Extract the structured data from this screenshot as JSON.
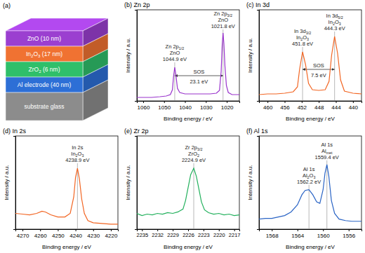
{
  "diagram": {
    "label": "(a)",
    "layers": [
      {
        "label": "ZnO (10 nm)",
        "color": "#9b3fd0"
      },
      {
        "label": [
          {
            "t": "In"
          },
          {
            "t": "2",
            "sub": true
          },
          {
            "t": "O"
          },
          {
            "t": "3",
            "sub": true
          },
          {
            "t": " (17 nm)"
          }
        ],
        "color": "#f07232"
      },
      {
        "label": [
          {
            "t": "ZrO"
          },
          {
            "t": "2",
            "sub": true
          },
          {
            "t": " (6 nm)"
          }
        ],
        "color": "#2fbf6a"
      },
      {
        "label": "Al electrode (40 nm)",
        "color": "#2d6fd6"
      },
      {
        "label": "substrate glass",
        "color": "#8c8c8c"
      }
    ]
  },
  "chart_data": [
    {
      "type": "line",
      "title": "(b) Zn 2p",
      "x_label": "Binding energy / eV",
      "y_label": "Intensity / a.u.",
      "xlim": [
        1063,
        1014
      ],
      "xticks": [
        1060,
        1050,
        1040,
        1030,
        1020
      ],
      "ylim": [
        0,
        130
      ],
      "tick_labels": "x",
      "color": "#9933cc",
      "x": [
        1063,
        1060,
        1056,
        1052,
        1049,
        1047,
        1046,
        1045.5,
        1044.9,
        1044.3,
        1043.6,
        1042.5,
        1040,
        1036,
        1032,
        1028,
        1025,
        1023.5,
        1022.7,
        1022.2,
        1021.8,
        1021.4,
        1020.9,
        1020.2,
        1019.3,
        1017.5,
        1014
      ],
      "values": [
        5,
        5,
        5,
        6,
        7,
        9,
        16,
        34,
        48,
        36,
        18,
        12,
        10,
        10,
        10,
        10,
        11,
        15,
        42,
        80,
        97,
        82,
        50,
        22,
        12,
        9,
        9
      ],
      "annotations": [
        {
          "x": 1044.9,
          "y": 55,
          "lines": [
            [
              {
                "t": "Zn 2p"
              },
              {
                "t": "1/2",
                "sub": true
              }
            ],
            "ZnO",
            "1044.9 eV"
          ]
        },
        {
          "x": 1021.8,
          "y": 102,
          "lines": [
            [
              {
                "t": "Zn 2p"
              },
              {
                "t": "3/2",
                "sub": true
              }
            ],
            "ZnO",
            "1021.8 eV"
          ]
        }
      ],
      "arrows": [
        {
          "x1": 1044.9,
          "x2": 1021.8,
          "y": 36,
          "lines": [
            "SOS",
            "23.1 eV"
          ]
        }
      ]
    },
    {
      "type": "line",
      "title": "(c) In 3d",
      "x_label": "Binding energy / eV",
      "y_label": "Intensity / a.u.",
      "xlim": [
        462,
        438
      ],
      "xticks": [
        460,
        456,
        452,
        448,
        444,
        440
      ],
      "ylim": [
        0,
        130
      ],
      "tick_labels": "x",
      "color": "#f26522",
      "x": [
        462,
        460,
        458,
        456,
        454,
        453,
        452.5,
        451.8,
        451.1,
        450.4,
        449.5,
        448,
        446.5,
        445.6,
        445,
        444.3,
        443.6,
        442.9,
        442,
        440,
        438
      ],
      "values": [
        9,
        10,
        10,
        11,
        13,
        20,
        45,
        70,
        52,
        25,
        16,
        15,
        16,
        28,
        65,
        92,
        68,
        30,
        14,
        11,
        10
      ],
      "annotations": [
        {
          "x": 451.8,
          "y": 77,
          "lines": [
            [
              {
                "t": "In 3d"
              },
              {
                "t": "3/2",
                "sub": true
              }
            ],
            [
              {
                "t": "In"
              },
              {
                "t": "2",
                "sub": true
              },
              {
                "t": "O"
              },
              {
                "t": "3",
                "sub": true
              }
            ],
            "451.8 eV"
          ]
        },
        {
          "x": 444.3,
          "y": 99,
          "lines": [
            [
              {
                "t": "In 3d"
              },
              {
                "t": "5/2",
                "sub": true
              }
            ],
            [
              {
                "t": "In"
              },
              {
                "t": "2",
                "sub": true
              },
              {
                "t": "O"
              },
              {
                "t": "3",
                "sub": true
              }
            ],
            "444.3 eV"
          ]
        }
      ],
      "arrows": [
        {
          "x1": 451.8,
          "x2": 444.3,
          "y": 45,
          "lines": [
            "SOS",
            "7.5 eV"
          ]
        }
      ]
    },
    {
      "type": "line",
      "title": "(d) In 2s",
      "x_label": "Binding energy / eV",
      "y_label": "Intensity / a.u.",
      "xlim": [
        4274,
        4216
      ],
      "xticks": [
        4270,
        4260,
        4250,
        4240,
        4230,
        4220
      ],
      "ylim": [
        0,
        130
      ],
      "tick_labels": "x",
      "color": "#f26522",
      "x": [
        4274,
        4270,
        4266,
        4262,
        4259,
        4257,
        4254,
        4250,
        4246,
        4243,
        4241,
        4240,
        4238.9,
        4237.8,
        4236.5,
        4235,
        4233,
        4230,
        4225,
        4220,
        4216
      ],
      "values": [
        22,
        21,
        20,
        22,
        25,
        24,
        20,
        17,
        17,
        22,
        45,
        72,
        85,
        70,
        42,
        22,
        12,
        9,
        8,
        7,
        7
      ],
      "annotations": [
        {
          "x": 4238.9,
          "y": 92,
          "lines": [
            "In 2s",
            [
              {
                "t": "In"
              },
              {
                "t": "2",
                "sub": true
              },
              {
                "t": "O"
              },
              {
                "t": "3",
                "sub": true
              }
            ],
            "4238.9 eV"
          ]
        }
      ],
      "arrows": []
    },
    {
      "type": "line",
      "title": "(e) Zr 2p",
      "x_label": "Binding energy / eV",
      "y_label": "Intensity / a.u.",
      "xlim": [
        2236,
        2216
      ],
      "xticks": [
        2235,
        2232,
        2229,
        2226,
        2223,
        2220,
        2217
      ],
      "ylim": [
        0,
        130
      ],
      "tick_labels": "x",
      "color": "#22b05c",
      "x": [
        2236,
        2235,
        2234,
        2233,
        2232,
        2231,
        2230,
        2229,
        2228,
        2227,
        2226.5,
        2226,
        2225.5,
        2224.9,
        2224.4,
        2223.9,
        2223.4,
        2222.8,
        2222,
        2221,
        2220,
        2219,
        2218,
        2217,
        2216
      ],
      "values": [
        22,
        19,
        21,
        20,
        22,
        21,
        23,
        22,
        24,
        28,
        40,
        58,
        76,
        85,
        74,
        56,
        38,
        27,
        23,
        21,
        22,
        20,
        21,
        19,
        20
      ],
      "annotations": [
        {
          "x": 2224.9,
          "y": 92,
          "lines": [
            [
              {
                "t": "Zr 2p"
              },
              {
                "t": "3/2",
                "sub": true
              }
            ],
            [
              {
                "t": "ZrO"
              },
              {
                "t": "2",
                "sub": true
              }
            ],
            "2224.9 eV"
          ]
        }
      ],
      "arrows": []
    },
    {
      "type": "line",
      "title": "(f) Al 1s",
      "x_label": "Binding energy / eV",
      "y_label": "Intensity / a.u.",
      "xlim": [
        1570,
        1554
      ],
      "xticks": [
        1568,
        1564,
        1560,
        1556
      ],
      "ylim": [
        0,
        130
      ],
      "tick_labels": "x",
      "color": "#2a64c5",
      "x": [
        1570,
        1569,
        1568,
        1567,
        1566,
        1565,
        1564,
        1563.3,
        1562.8,
        1562.2,
        1561.6,
        1561,
        1560.5,
        1560,
        1559.7,
        1559.4,
        1559.1,
        1558.7,
        1558.2,
        1557.5,
        1556.5,
        1555.5,
        1554
      ],
      "values": [
        14,
        15,
        15,
        17,
        19,
        24,
        34,
        48,
        54,
        55,
        48,
        38,
        36,
        55,
        78,
        90,
        74,
        40,
        22,
        14,
        12,
        11,
        11
      ],
      "annotations": [
        {
          "x": 1562.2,
          "y": 62,
          "lines": [
            "Al 1s",
            [
              {
                "t": "Al"
              },
              {
                "t": "2",
                "sub": true
              },
              {
                "t": "O"
              },
              {
                "t": "3",
                "sub": true
              }
            ],
            "1562.2 eV"
          ]
        },
        {
          "x": 1559.4,
          "y": 96,
          "lines": [
            "Al 1s",
            [
              {
                "t": "Al"
              },
              {
                "t": "met",
                "sub": true
              }
            ],
            "1559.4 eV"
          ]
        }
      ],
      "arrows": []
    }
  ]
}
